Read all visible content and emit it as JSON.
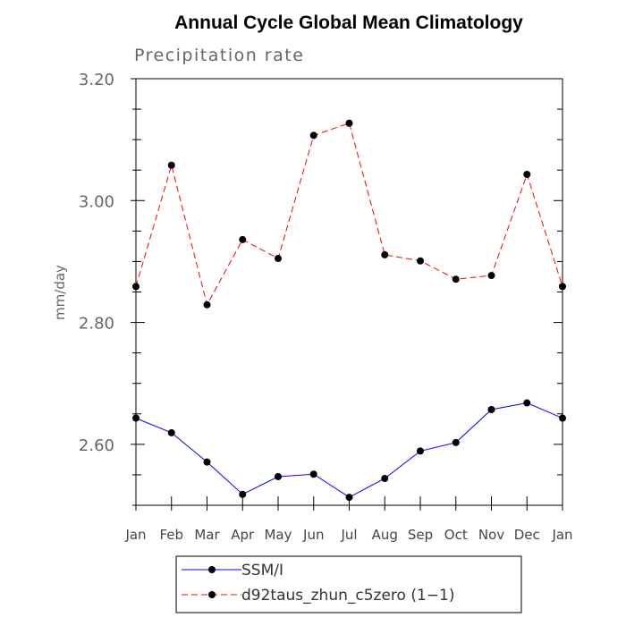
{
  "chart_data": {
    "type": "line",
    "title": "Annual Cycle Global Mean Climatology",
    "subtitle": "Precipitation rate",
    "xlabel": "",
    "ylabel": "mm/day",
    "categories": [
      "Jan",
      "Feb",
      "Mar",
      "Apr",
      "May",
      "Jun",
      "Jul",
      "Aug",
      "Sep",
      "Oct",
      "Nov",
      "Dec",
      "Jan"
    ],
    "ylim": [
      2.5,
      3.2
    ],
    "yticks": [
      2.6,
      2.8,
      3.0,
      3.2
    ],
    "ytick_labels": [
      "2.60",
      "2.80",
      "3.00",
      "3.20"
    ],
    "series": [
      {
        "name": "SSM/I",
        "color": "#0000ff",
        "line_style": "solid",
        "values": [
          2.643,
          2.619,
          2.571,
          2.518,
          2.547,
          2.551,
          2.513,
          2.544,
          2.589,
          2.603,
          2.657,
          2.668,
          2.643
        ]
      },
      {
        "name": "d92taus_zhun_c5zero (1−1)",
        "color": "#ff0000",
        "line_style": "dashed",
        "values": [
          2.859,
          3.058,
          2.829,
          2.936,
          2.905,
          3.107,
          3.127,
          2.911,
          2.901,
          2.871,
          2.877,
          3.043,
          2.859
        ]
      }
    ],
    "grid": false,
    "legend": "bottom-center"
  }
}
